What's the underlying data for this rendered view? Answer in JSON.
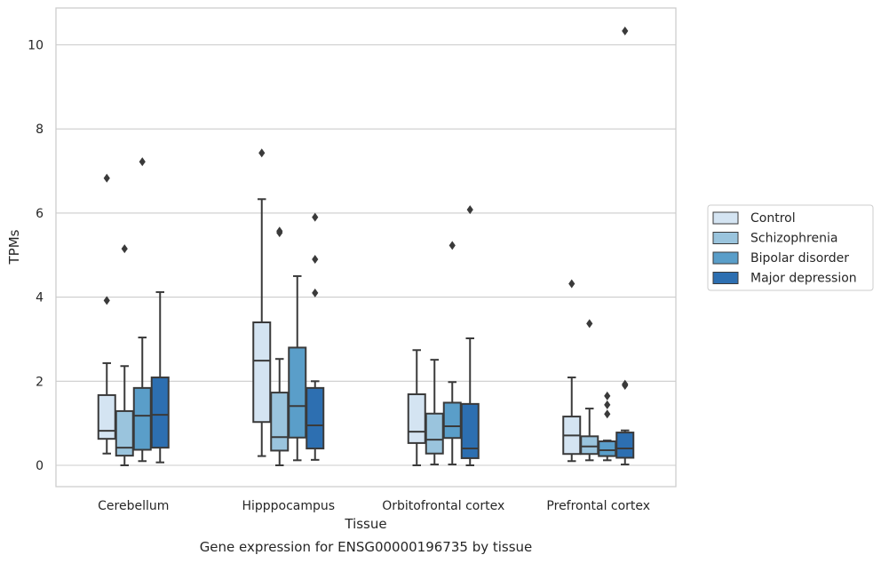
{
  "chart_data": {
    "type": "box",
    "caption": "Gene expression for ENSG00000196735 by tissue",
    "xlabel": "Tissue",
    "ylabel": "TPMs",
    "ylim": [
      -0.5,
      10.8
    ],
    "yticks": [
      0,
      2,
      4,
      6,
      8,
      10
    ],
    "grid": "horizontal",
    "legend_position": "right",
    "categories": [
      "Cerebellum",
      "Hipppocampus",
      "Orbitofrontal cortex",
      "Prefrontal cortex"
    ],
    "series": [
      {
        "name": "Control",
        "color": "#d4e4f2",
        "boxes": [
          {
            "whisker_low": 0.28,
            "q1": 0.63,
            "median": 0.82,
            "q3": 1.67,
            "whisker_high": 2.43,
            "outliers": [
              3.92,
              6.83
            ]
          },
          {
            "whisker_low": 0.22,
            "q1": 1.03,
            "median": 2.49,
            "q3": 3.4,
            "whisker_high": 6.33,
            "outliers": [
              7.43
            ]
          },
          {
            "whisker_low": 0.0,
            "q1": 0.53,
            "median": 0.8,
            "q3": 1.69,
            "whisker_high": 2.74,
            "outliers": []
          },
          {
            "whisker_low": 0.1,
            "q1": 0.27,
            "median": 0.71,
            "q3": 1.16,
            "whisker_high": 2.09,
            "outliers": [
              4.32
            ]
          }
        ]
      },
      {
        "name": "Schizophrenia",
        "color": "#9ac4dd",
        "boxes": [
          {
            "whisker_low": 0.0,
            "q1": 0.23,
            "median": 0.42,
            "q3": 1.29,
            "whisker_high": 2.36,
            "outliers": [
              5.15
            ]
          },
          {
            "whisker_low": 0.0,
            "q1": 0.35,
            "median": 0.67,
            "q3": 1.73,
            "whisker_high": 2.53,
            "outliers": [
              5.53,
              5.57
            ]
          },
          {
            "whisker_low": 0.02,
            "q1": 0.28,
            "median": 0.61,
            "q3": 1.23,
            "whisker_high": 2.51,
            "outliers": []
          },
          {
            "whisker_low": 0.12,
            "q1": 0.27,
            "median": 0.45,
            "q3": 0.69,
            "whisker_high": 1.35,
            "outliers": [
              3.37
            ]
          }
        ]
      },
      {
        "name": "Bipolar disorder",
        "color": "#5a9ec9",
        "boxes": [
          {
            "whisker_low": 0.1,
            "q1": 0.37,
            "median": 1.18,
            "q3": 1.84,
            "whisker_high": 3.04,
            "outliers": [
              7.22
            ]
          },
          {
            "whisker_low": 0.12,
            "q1": 0.66,
            "median": 1.41,
            "q3": 2.8,
            "whisker_high": 4.5,
            "outliers": []
          },
          {
            "whisker_low": 0.02,
            "q1": 0.65,
            "median": 0.93,
            "q3": 1.49,
            "whisker_high": 1.98,
            "outliers": [
              5.23
            ]
          },
          {
            "whisker_low": 0.12,
            "q1": 0.22,
            "median": 0.36,
            "q3": 0.57,
            "whisker_high": 0.59,
            "outliers": [
              1.22,
              1.44,
              1.65
            ]
          }
        ]
      },
      {
        "name": "Major depression",
        "color": "#2d6fb1",
        "boxes": [
          {
            "whisker_low": 0.07,
            "q1": 0.42,
            "median": 1.2,
            "q3": 2.09,
            "whisker_high": 4.12,
            "outliers": []
          },
          {
            "whisker_low": 0.13,
            "q1": 0.4,
            "median": 0.95,
            "q3": 1.84,
            "whisker_high": 2.0,
            "outliers": [
              4.1,
              4.9,
              5.9
            ]
          },
          {
            "whisker_low": 0.0,
            "q1": 0.17,
            "median": 0.4,
            "q3": 1.46,
            "whisker_high": 3.02,
            "outliers": [
              6.08
            ]
          },
          {
            "whisker_low": 0.02,
            "q1": 0.18,
            "median": 0.4,
            "q3": 0.78,
            "whisker_high": 0.83,
            "outliers": [
              1.9,
              1.93,
              10.33
            ]
          }
        ]
      }
    ]
  }
}
